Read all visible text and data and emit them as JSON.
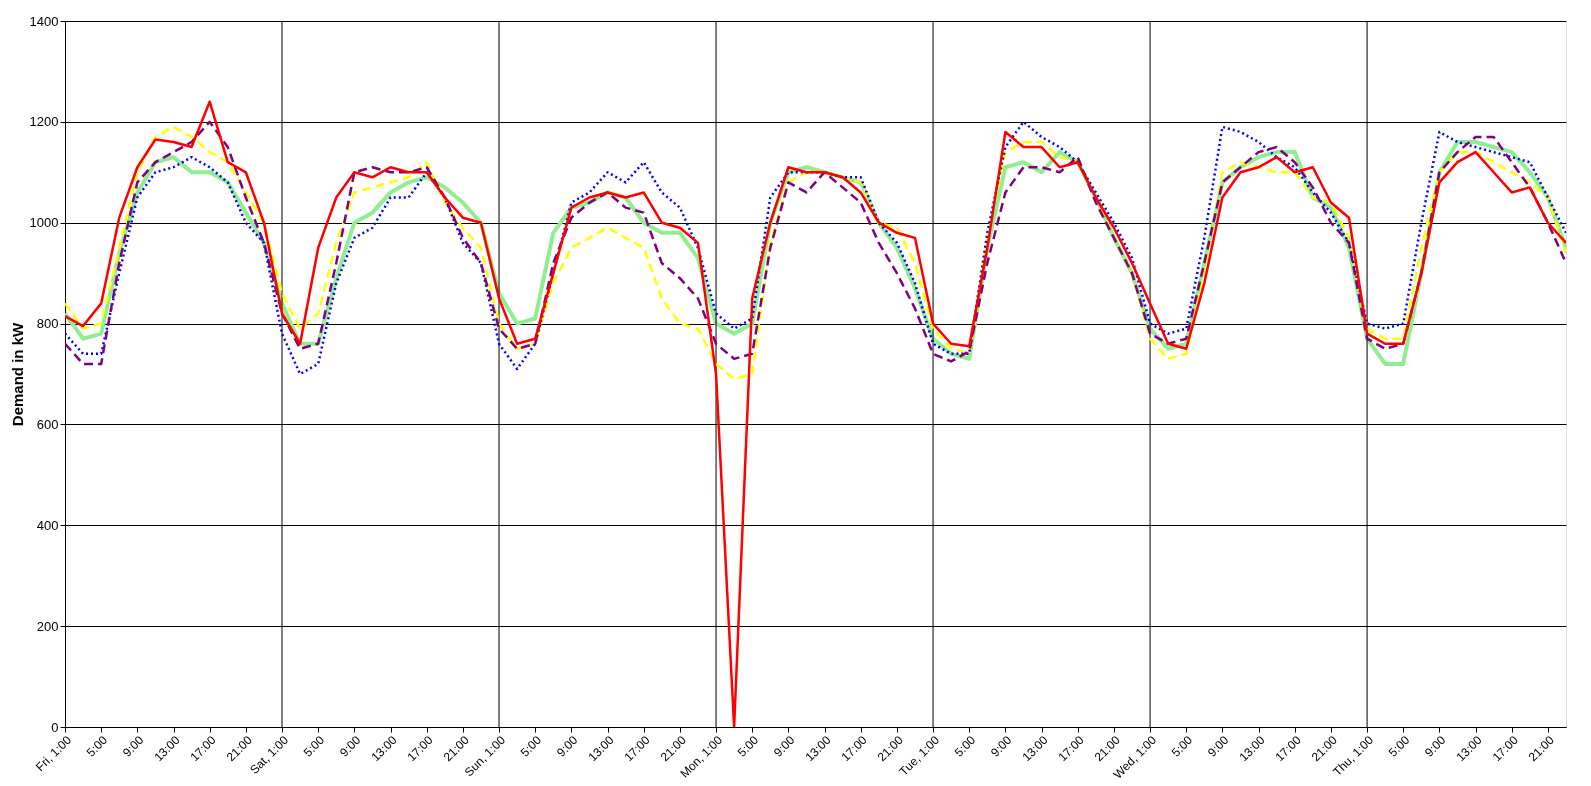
{
  "chart_data": {
    "type": "line",
    "ylabel": "Demand in kW",
    "ylim": [
      0,
      1400
    ],
    "yticks": [
      0,
      200,
      400,
      600,
      800,
      1000,
      1200,
      1400
    ],
    "categories": [
      "Fri, 1:00",
      null,
      "5:00",
      null,
      "9:00",
      null,
      "13:00",
      null,
      "17:00",
      null,
      "21:00",
      null,
      "Sat, 1:00",
      null,
      "5:00",
      null,
      "9:00",
      null,
      "13:00",
      null,
      "17:00",
      null,
      "21:00",
      null,
      "Sun, 1:00",
      null,
      "5:00",
      null,
      "9:00",
      null,
      "13:00",
      null,
      "17:00",
      null,
      "21:00",
      null,
      "Mon, 1:00",
      null,
      "5:00",
      null,
      "9:00",
      null,
      "13:00",
      null,
      "17:00",
      null,
      "21:00",
      null,
      "Tue, 1:00",
      null,
      "5:00",
      null,
      "9:00",
      null,
      "13:00",
      null,
      "17:00",
      null,
      "21:00",
      null,
      "Wed, 1:00",
      null,
      "5:00",
      null,
      "9:00",
      null,
      "13:00",
      null,
      "17:00",
      null,
      "21:00",
      null,
      "Thu, 1:00",
      null,
      "5:00",
      null,
      "9:00",
      null,
      "13:00",
      null,
      "17:00",
      null,
      "21:00",
      null
    ],
    "grid": "y",
    "ref_lines": [
      {
        "axis": "x",
        "value": "Sat, 1:00",
        "color": "#000000"
      },
      {
        "axis": "x",
        "value": "Sun, 1:00",
        "color": "#000000"
      },
      {
        "axis": "x",
        "value": "Mon, 1:00",
        "color": "#000000"
      },
      {
        "axis": "x",
        "value": "Tue, 1:00",
        "color": "#000000"
      },
      {
        "axis": "x",
        "value": "Wed, 1:00",
        "color": "#000000"
      },
      {
        "axis": "x",
        "value": "Thu, 1:00",
        "color": "#000000"
      }
    ],
    "series": [
      {
        "color": "#90ee90",
        "line_style": "solid",
        "values": [
          820,
          770,
          780,
          940,
          1060,
          1120,
          1130,
          1100,
          1100,
          1080,
          1020,
          960,
          840,
          760,
          760,
          890,
          1000,
          1020,
          1060,
          1080,
          1090,
          1070,
          1040,
          1000,
          860,
          800,
          810,
          980,
          1030,
          1040,
          1060,
          1050,
          1000,
          980,
          980,
          930,
          800,
          780,
          800,
          1000,
          1100,
          1110,
          1100,
          1090,
          1080,
          1000,
          950,
          870,
          770,
          740,
          730,
          950,
          1110,
          1120,
          1100,
          1140,
          1120,
          1050,
          970,
          900,
          790,
          750,
          760,
          920,
          1080,
          1110,
          1130,
          1140,
          1140,
          1050,
          1030,
          950,
          770,
          720,
          720,
          900,
          1100,
          1160,
          1160,
          1150,
          1140,
          1100,
          1050,
          950
        ]
      },
      {
        "color": "#ffff00",
        "line_style": "dashed",
        "values": [
          840,
          790,
          800,
          950,
          1100,
          1170,
          1190,
          1170,
          1140,
          1120,
          1060,
          1000,
          860,
          790,
          820,
          960,
          1060,
          1070,
          1080,
          1090,
          1120,
          1040,
          990,
          950,
          800,
          750,
          760,
          880,
          950,
          970,
          990,
          970,
          950,
          850,
          800,
          790,
          720,
          690,
          700,
          960,
          1080,
          1100,
          1100,
          1090,
          1080,
          1000,
          990,
          920,
          790,
          750,
          740,
          970,
          1140,
          1160,
          1160,
          1130,
          1120,
          1050,
          970,
          900,
          770,
          730,
          740,
          900,
          1100,
          1120,
          1110,
          1100,
          1100,
          1050,
          1040,
          970,
          790,
          770,
          770,
          950,
          1100,
          1140,
          1140,
          1120,
          1100,
          1080,
          1050,
          940
        ]
      },
      {
        "color": "#0000ff",
        "line_style": "dotted",
        "values": [
          780,
          740,
          740,
          900,
          1050,
          1100,
          1110,
          1130,
          1110,
          1080,
          1000,
          960,
          780,
          700,
          720,
          880,
          970,
          990,
          1050,
          1050,
          1100,
          1050,
          960,
          920,
          760,
          710,
          760,
          900,
          1040,
          1060,
          1100,
          1080,
          1120,
          1060,
          1030,
          950,
          820,
          790,
          810,
          1050,
          1100,
          1100,
          1100,
          1090,
          1090,
          1000,
          960,
          880,
          760,
          740,
          740,
          980,
          1150,
          1200,
          1170,
          1150,
          1120,
          1060,
          1000,
          930,
          800,
          780,
          790,
          970,
          1190,
          1180,
          1160,
          1130,
          1110,
          1060,
          1020,
          960,
          800,
          790,
          800,
          1000,
          1180,
          1160,
          1150,
          1140,
          1130,
          1120,
          1050,
          980
        ]
      },
      {
        "color": "#800080",
        "line_style": "dashed",
        "values": [
          760,
          720,
          720,
          920,
          1080,
          1120,
          1140,
          1160,
          1200,
          1150,
          1050,
          960,
          820,
          750,
          760,
          920,
          1100,
          1110,
          1100,
          1100,
          1110,
          1050,
          970,
          920,
          790,
          750,
          760,
          920,
          1010,
          1040,
          1060,
          1030,
          1020,
          920,
          890,
          850,
          760,
          730,
          740,
          950,
          1080,
          1060,
          1100,
          1070,
          1040,
          960,
          900,
          830,
          740,
          725,
          745,
          920,
          1060,
          1110,
          1110,
          1100,
          1130,
          1040,
          970,
          900,
          780,
          760,
          770,
          920,
          1080,
          1110,
          1140,
          1150,
          1120,
          1070,
          1000,
          960,
          770,
          750,
          760,
          900,
          1100,
          1140,
          1170,
          1170,
          1120,
          1070,
          1000,
          920
        ]
      },
      {
        "color": "#ff0000",
        "line_style": "solid",
        "values": [
          815,
          795,
          840,
          1010,
          1110,
          1165,
          1160,
          1150,
          1240,
          1120,
          1100,
          1000,
          820,
          760,
          950,
          1050,
          1100,
          1090,
          1110,
          1100,
          1100,
          1050,
          1010,
          1000,
          850,
          760,
          770,
          900,
          1030,
          1050,
          1060,
          1050,
          1060,
          1000,
          990,
          960,
          700,
          0,
          850,
          1000,
          1110,
          1100,
          1100,
          1090,
          1060,
          1000,
          980,
          970,
          800,
          760,
          755,
          950,
          1180,
          1150,
          1150,
          1110,
          1120,
          1050,
          990,
          920,
          840,
          760,
          750,
          880,
          1050,
          1100,
          1110,
          1130,
          1100,
          1110,
          1040,
          1010,
          780,
          760,
          760,
          900,
          1080,
          1120,
          1140,
          1100,
          1060,
          1070,
          1000,
          960
        ]
      }
    ]
  }
}
